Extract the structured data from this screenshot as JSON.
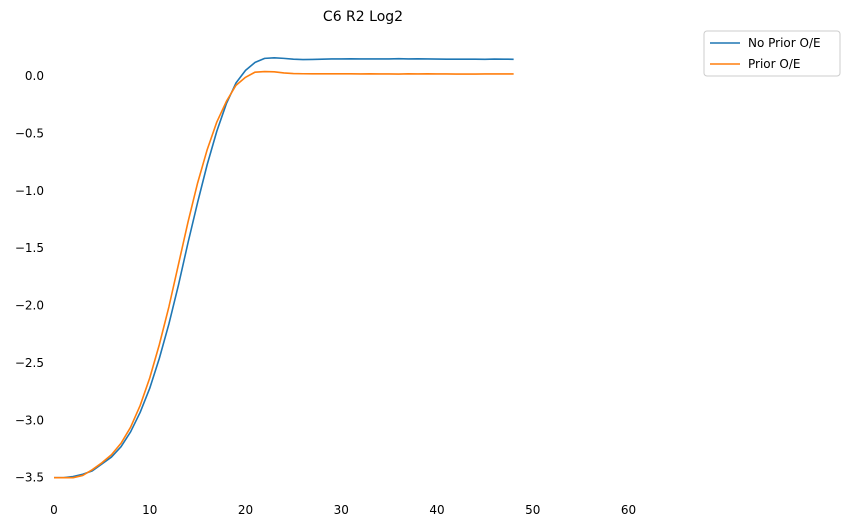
{
  "chart_data": {
    "type": "line",
    "title": "C6 R2 Log2",
    "xlabel": "",
    "ylabel": "",
    "xlim": [
      0,
      66
    ],
    "ylim": [
      -3.52,
      0.35
    ],
    "xticks": [
      0,
      10,
      20,
      30,
      40,
      50,
      60
    ],
    "yticks": [
      0.0,
      -0.5,
      -1.0,
      -1.5,
      -2.0,
      -2.5,
      -3.0,
      -3.5
    ],
    "grid": false,
    "legend_position": "top-right outside",
    "series": [
      {
        "name": "No Prior O/E",
        "color": "#1f77b4",
        "x": [
          0,
          1,
          2,
          3,
          4,
          5,
          6,
          7,
          8,
          9,
          10,
          11,
          12,
          13,
          14,
          15,
          16,
          17,
          18,
          19,
          20,
          21,
          22,
          23,
          24,
          25,
          26,
          27,
          28,
          29,
          30,
          31,
          32,
          33,
          34,
          35,
          36,
          37,
          38,
          39,
          40,
          41,
          42,
          43,
          44,
          45,
          46,
          47,
          48
        ],
        "y": [
          -3.5,
          -3.5,
          -3.49,
          -3.47,
          -3.44,
          -3.38,
          -3.32,
          -3.23,
          -3.1,
          -2.93,
          -2.72,
          -2.46,
          -2.16,
          -1.82,
          -1.45,
          -1.1,
          -0.77,
          -0.48,
          -0.24,
          -0.06,
          0.05,
          0.12,
          0.155,
          0.16,
          0.155,
          0.148,
          0.145,
          0.146,
          0.148,
          0.15,
          0.15,
          0.151,
          0.15,
          0.15,
          0.15,
          0.15,
          0.152,
          0.15,
          0.151,
          0.15,
          0.149,
          0.148,
          0.148,
          0.148,
          0.148,
          0.147,
          0.149,
          0.148,
          0.147
        ]
      },
      {
        "name": "Prior O/E",
        "color": "#ff7f0e",
        "x": [
          0,
          1,
          2,
          3,
          4,
          5,
          6,
          7,
          8,
          9,
          10,
          11,
          12,
          13,
          14,
          15,
          16,
          17,
          18,
          19,
          20,
          21,
          22,
          23,
          24,
          25,
          26,
          27,
          28,
          29,
          30,
          31,
          32,
          33,
          34,
          35,
          36,
          37,
          38,
          39,
          40,
          41,
          42,
          43,
          44,
          45,
          46,
          47,
          48
        ],
        "y": [
          -3.5,
          -3.5,
          -3.5,
          -3.48,
          -3.43,
          -3.37,
          -3.3,
          -3.2,
          -3.06,
          -2.87,
          -2.63,
          -2.34,
          -2.01,
          -1.64,
          -1.27,
          -0.93,
          -0.64,
          -0.4,
          -0.22,
          -0.08,
          -0.01,
          0.035,
          0.04,
          0.038,
          0.028,
          0.023,
          0.021,
          0.02,
          0.02,
          0.02,
          0.02,
          0.02,
          0.019,
          0.02,
          0.019,
          0.019,
          0.018,
          0.02,
          0.019,
          0.02,
          0.019,
          0.019,
          0.018,
          0.018,
          0.018,
          0.019,
          0.019,
          0.019,
          0.019
        ]
      }
    ]
  }
}
